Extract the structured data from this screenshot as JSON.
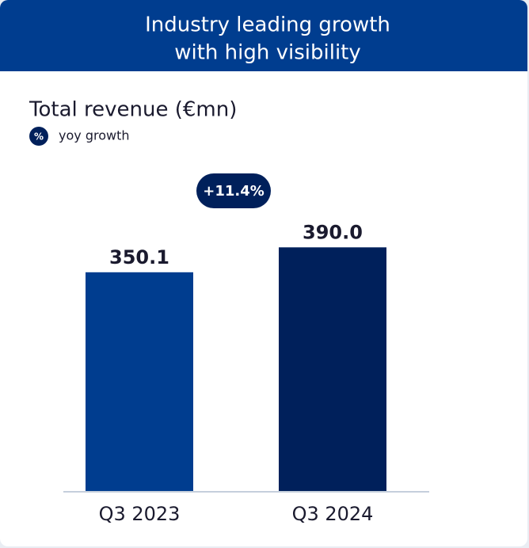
{
  "chart_data": {
    "type": "bar",
    "title": [
      "Industry leading growth",
      "with high visibility"
    ],
    "subtitle": "Total revenue (€mn)",
    "legend": {
      "symbol": "%",
      "label": "yoy growth"
    },
    "annotation": "+11.4%",
    "categories": [
      "Q3 2023",
      "Q3 2024"
    ],
    "values": [
      350.1,
      390.0
    ],
    "value_labels": [
      "350.1",
      "390.0"
    ],
    "colors": [
      "#003d8f",
      "#00205b"
    ],
    "ylim": [
      0,
      450
    ]
  }
}
